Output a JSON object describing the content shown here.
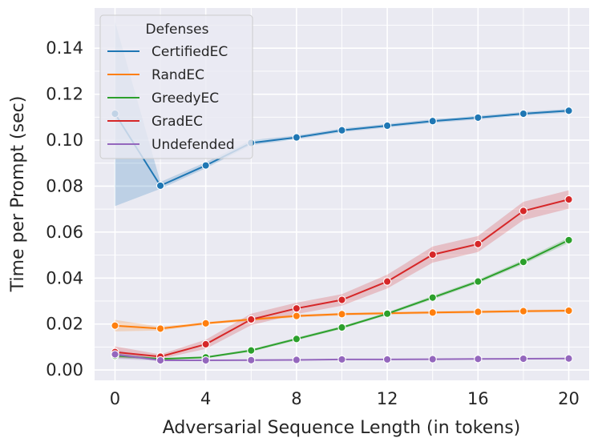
{
  "chart_data": {
    "type": "line",
    "xlabel": "Adversarial Sequence Length (in tokens)",
    "ylabel": "Time per Prompt (sec)",
    "xlim": [
      -0.9,
      20.9
    ],
    "ylim": [
      -0.0045,
      0.1575
    ],
    "xticks": [
      0,
      4,
      8,
      12,
      16,
      20
    ],
    "xtick_labels": [
      "0",
      "4",
      "8",
      "12",
      "16",
      "20"
    ],
    "yticks": [
      0.0,
      0.02,
      0.04,
      0.06,
      0.08,
      0.1,
      0.12,
      0.14
    ],
    "ytick_labels": [
      "0.00",
      "0.02",
      "0.04",
      "0.06",
      "0.08",
      "0.10",
      "0.12",
      "0.14"
    ],
    "grid": true,
    "background": "#eaeaf2",
    "legend": {
      "title": "Defenses",
      "placement": "top-left"
    },
    "x": [
      0,
      2,
      4,
      6,
      8,
      10,
      12,
      14,
      16,
      18,
      20
    ],
    "series": [
      {
        "name": "CertifiedEC",
        "color": "#1f77b4",
        "values": [
          0.1115,
          0.0802,
          0.089,
          0.0988,
          0.1012,
          0.1043,
          0.1063,
          0.1083,
          0.1098,
          0.1115,
          0.1128
        ],
        "ci_low": [
          0.0713,
          0.0788,
          0.0878,
          0.0978,
          0.1004,
          0.1035,
          0.1055,
          0.1075,
          0.109,
          0.1107,
          0.112
        ],
        "ci_high": [
          0.1515,
          0.0818,
          0.0904,
          0.1,
          0.102,
          0.1051,
          0.1071,
          0.1091,
          0.1106,
          0.1123,
          0.1136
        ]
      },
      {
        "name": "RandEC",
        "color": "#ff7f0e",
        "values": [
          0.0193,
          0.018,
          0.0203,
          0.022,
          0.0235,
          0.0243,
          0.0247,
          0.025,
          0.0253,
          0.0256,
          0.0258
        ],
        "ci_low": [
          0.0168,
          0.0172,
          0.0197,
          0.0214,
          0.0229,
          0.0237,
          0.0241,
          0.0244,
          0.0247,
          0.025,
          0.0252
        ],
        "ci_high": [
          0.0218,
          0.0188,
          0.0209,
          0.0226,
          0.0241,
          0.0249,
          0.0253,
          0.0256,
          0.0259,
          0.0262,
          0.0264
        ]
      },
      {
        "name": "GreedyEC",
        "color": "#2ca02c",
        "values": [
          0.0062,
          0.0048,
          0.0055,
          0.0085,
          0.0135,
          0.0185,
          0.0245,
          0.0315,
          0.0385,
          0.047,
          0.0565
        ],
        "ci_low": [
          0.0052,
          0.0044,
          0.0051,
          0.0079,
          0.0129,
          0.0179,
          0.0239,
          0.0307,
          0.0377,
          0.046,
          0.0553
        ],
        "ci_high": [
          0.0072,
          0.0052,
          0.0059,
          0.0091,
          0.0141,
          0.0191,
          0.0251,
          0.0323,
          0.0393,
          0.048,
          0.0577
        ]
      },
      {
        "name": "GradEC",
        "color": "#d62728",
        "values": [
          0.0078,
          0.0058,
          0.0112,
          0.022,
          0.0268,
          0.0305,
          0.0385,
          0.0502,
          0.0548,
          0.0692,
          0.0742
        ],
        "ci_low": [
          0.0053,
          0.0048,
          0.0092,
          0.0195,
          0.0243,
          0.028,
          0.0355,
          0.0467,
          0.0513,
          0.0652,
          0.0702
        ],
        "ci_high": [
          0.0103,
          0.0068,
          0.0132,
          0.0245,
          0.0293,
          0.033,
          0.0415,
          0.0537,
          0.0583,
          0.0732,
          0.0782
        ]
      },
      {
        "name": "Undefended",
        "color": "#9467bd",
        "values": [
          0.0068,
          0.0042,
          0.0042,
          0.0043,
          0.0044,
          0.0046,
          0.0046,
          0.0047,
          0.0048,
          0.0049,
          0.005
        ],
        "ci_low": [
          0.0048,
          0.004,
          0.004,
          0.0041,
          0.0042,
          0.0044,
          0.0044,
          0.0045,
          0.0046,
          0.0047,
          0.0048
        ],
        "ci_high": [
          0.0088,
          0.0044,
          0.0044,
          0.0045,
          0.0046,
          0.0048,
          0.0048,
          0.0049,
          0.005,
          0.0051,
          0.0052
        ]
      }
    ]
  }
}
